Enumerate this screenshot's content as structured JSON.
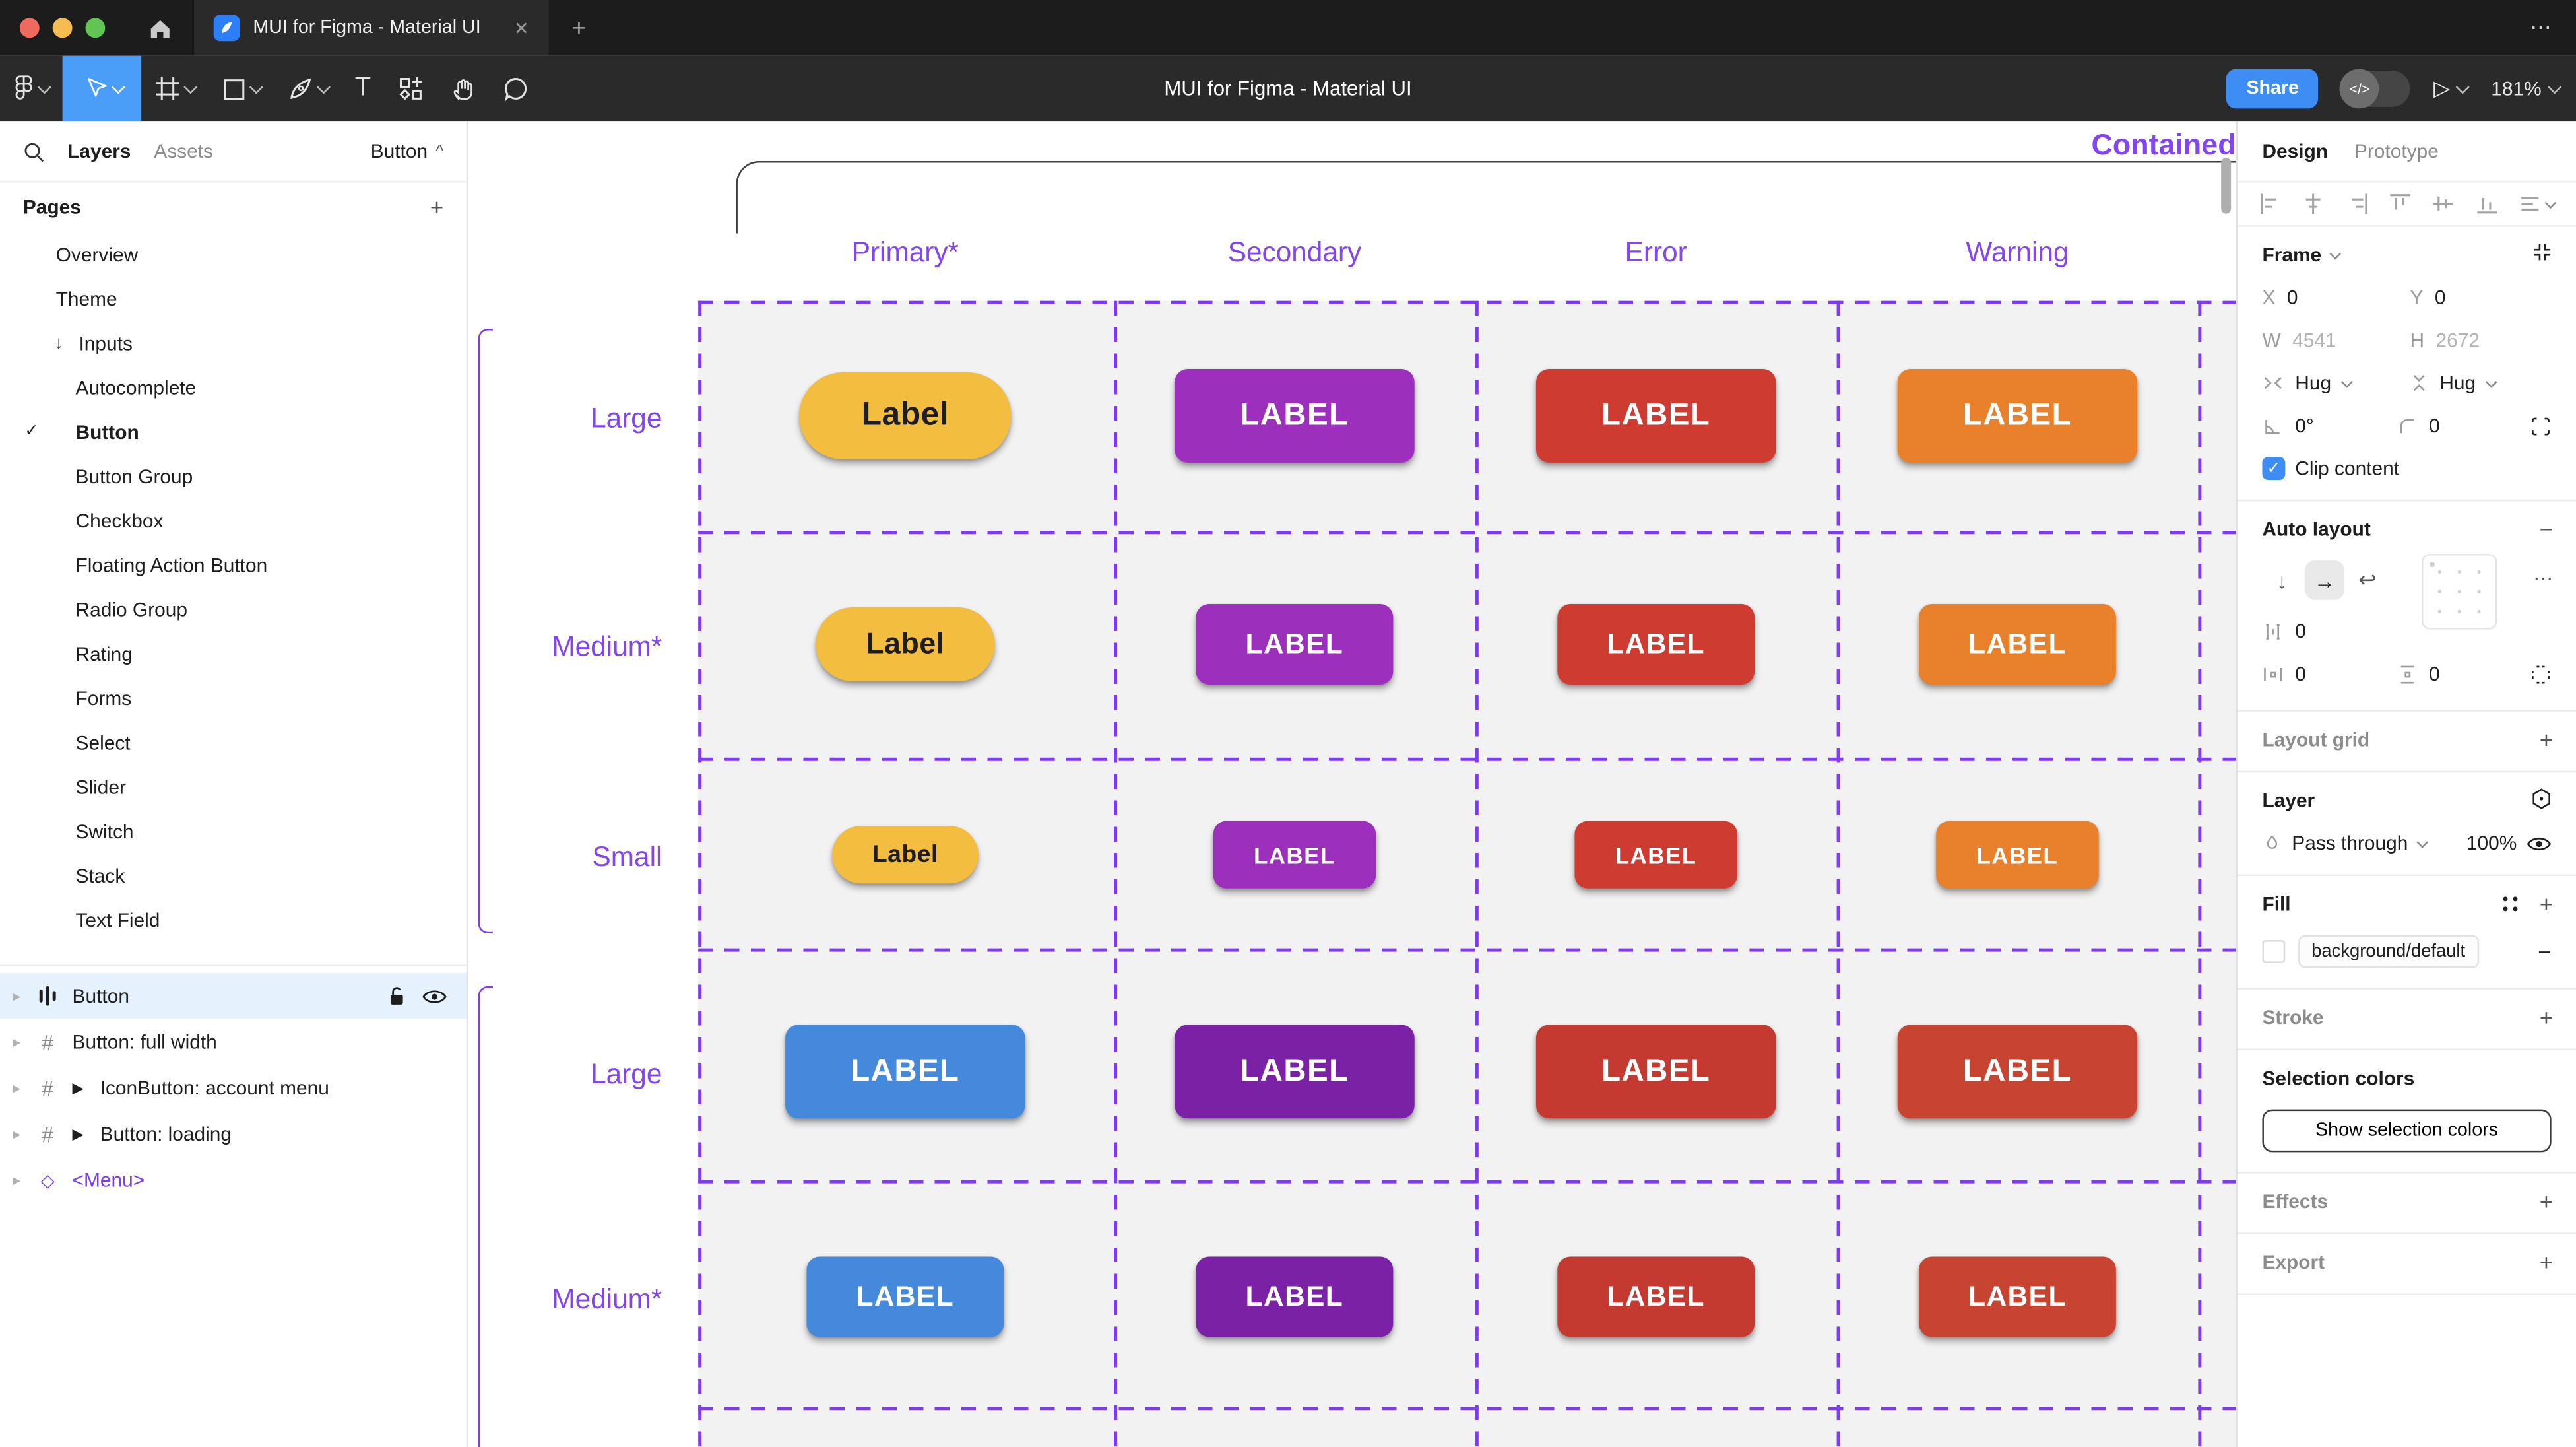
{
  "window": {
    "tab_title": "MUI for Figma - Material UI",
    "doc_title": "MUI for Figma - Material UI",
    "close_glyph": "✕",
    "new_tab_glyph": "+",
    "more_glyph": "⋯",
    "traffic_colors": {
      "red": "#ee6a5f",
      "yellow": "#f5bd4f",
      "green": "#61c554"
    }
  },
  "toolbar_right": {
    "share_label": "Share",
    "dev_toggle_glyph": "</>",
    "play_glyph": "▷",
    "zoom_level": "181%"
  },
  "left_panel": {
    "tabs": {
      "layers": "Layers",
      "assets": "Assets"
    },
    "page_selector": "Button",
    "page_selector_caret": "^",
    "pages_header": "Pages",
    "add_page_glyph": "+",
    "check_glyph": "✓",
    "arrow_down_glyph": "↓",
    "caret_glyph": "▸",
    "play_glyph": "▶",
    "hash_glyph": "#",
    "diamond_glyph": "◇",
    "pages": [
      {
        "label": "Overview",
        "level": 0
      },
      {
        "label": "Theme",
        "level": 0
      },
      {
        "label": "Inputs",
        "level": 0,
        "arrow": true
      },
      {
        "label": "Autocomplete",
        "level": 1
      },
      {
        "label": "Button",
        "level": 1,
        "current": true
      },
      {
        "label": "Button Group",
        "level": 1
      },
      {
        "label": "Checkbox",
        "level": 1
      },
      {
        "label": "Floating Action Button",
        "level": 1
      },
      {
        "label": "Radio Group",
        "level": 1
      },
      {
        "label": "Rating",
        "level": 1
      },
      {
        "label": "Forms",
        "level": 1
      },
      {
        "label": "Select",
        "level": 1
      },
      {
        "label": "Slider",
        "level": 1
      },
      {
        "label": "Switch",
        "level": 1
      },
      {
        "label": "Stack",
        "level": 1
      },
      {
        "label": "Text Field",
        "level": 1
      }
    ],
    "layers": [
      {
        "label": "Button",
        "icon": "autolayout",
        "selected": true
      },
      {
        "label": "Button: full width",
        "icon": "frame"
      },
      {
        "label": "IconButton: account menu",
        "icon": "frame",
        "play": true
      },
      {
        "label": "Button: loading",
        "icon": "frame",
        "play": true
      },
      {
        "label": "<Menu>",
        "icon": "instance",
        "purple": true
      }
    ]
  },
  "canvas": {
    "section_title": "Contained",
    "columns": [
      "Primary*",
      "Secondary",
      "Error",
      "Warning"
    ],
    "rows": [
      {
        "label": "Large",
        "size": "lg"
      },
      {
        "label": "Medium*",
        "size": "md"
      },
      {
        "label": "Small",
        "size": "sm"
      },
      {
        "label": "Large",
        "size": "lg"
      },
      {
        "label": "Medium*",
        "size": "md"
      }
    ],
    "buttons": [
      [
        {
          "text": "Label",
          "bg": "#f3bd40",
          "fg": "#1e1e1e",
          "shape": "pill"
        },
        {
          "text": "LABEL",
          "bg": "#9c30bc",
          "fg": "#ffffff",
          "shape": "rounded"
        },
        {
          "text": "LABEL",
          "bg": "#ce3b31",
          "fg": "#ffffff",
          "shape": "rounded"
        },
        {
          "text": "LABEL",
          "bg": "#e8802c",
          "fg": "#ffffff",
          "shape": "rounded"
        }
      ],
      [
        {
          "text": "Label",
          "bg": "#f3bd40",
          "fg": "#1e1e1e",
          "shape": "pill"
        },
        {
          "text": "LABEL",
          "bg": "#9c30bc",
          "fg": "#ffffff",
          "shape": "rounded"
        },
        {
          "text": "LABEL",
          "bg": "#ce3b31",
          "fg": "#ffffff",
          "shape": "rounded"
        },
        {
          "text": "LABEL",
          "bg": "#e8802c",
          "fg": "#ffffff",
          "shape": "rounded"
        }
      ],
      [
        {
          "text": "Label",
          "bg": "#f3bd40",
          "fg": "#1e1e1e",
          "shape": "pill"
        },
        {
          "text": "LABEL",
          "bg": "#9c30bc",
          "fg": "#ffffff",
          "shape": "rounded"
        },
        {
          "text": "LABEL",
          "bg": "#ce3b31",
          "fg": "#ffffff",
          "shape": "rounded"
        },
        {
          "text": "LABEL",
          "bg": "#e8802c",
          "fg": "#ffffff",
          "shape": "rounded"
        }
      ],
      [
        {
          "text": "LABEL",
          "bg": "#4489db",
          "fg": "#ffffff",
          "shape": "rounded"
        },
        {
          "text": "LABEL",
          "bg": "#7b21a6",
          "fg": "#ffffff",
          "shape": "rounded"
        },
        {
          "text": "LABEL",
          "bg": "#c43a31",
          "fg": "#ffffff",
          "shape": "rounded"
        },
        {
          "text": "LABEL",
          "bg": "#c74430",
          "fg": "#ffffff",
          "shape": "rounded"
        }
      ],
      [
        {
          "text": "LABEL",
          "bg": "#4489db",
          "fg": "#ffffff",
          "shape": "rounded"
        },
        {
          "text": "LABEL",
          "bg": "#7b21a6",
          "fg": "#ffffff",
          "shape": "rounded"
        },
        {
          "text": "LABEL",
          "bg": "#c43a31",
          "fg": "#ffffff",
          "shape": "rounded"
        },
        {
          "text": "LABEL",
          "bg": "#c74430",
          "fg": "#ffffff",
          "shape": "rounded"
        }
      ]
    ],
    "accent_purple": "#8345f1"
  },
  "right_panel": {
    "tabs": {
      "design": "Design",
      "prototype": "Prototype"
    },
    "frame": {
      "title": "Frame",
      "x_label": "X",
      "x_value": "0",
      "y_label": "Y",
      "y_value": "0",
      "w_label": "W",
      "w_value": "4541",
      "h_label": "H",
      "h_value": "2672",
      "hug_h": "Hug",
      "hug_v": "Hug",
      "rotation": "0°",
      "corner_radius": "0",
      "clip_label": "Clip content",
      "check_glyph": "✓"
    },
    "auto_layout": {
      "title": "Auto layout",
      "remove_glyph": "−",
      "dir_down_glyph": "↓",
      "dir_right_glyph": "→",
      "wrap_glyph": "↩",
      "more_glyph": "⋯",
      "gap_value": "0",
      "pad_h_value": "0",
      "pad_v_value": "0"
    },
    "layout_grid": {
      "title": "Layout grid",
      "add_glyph": "+"
    },
    "layer": {
      "title": "Layer",
      "blend_mode": "Pass through",
      "opacity": "100%"
    },
    "fill": {
      "title": "Fill",
      "token": "background/default",
      "add_glyph": "+",
      "remove_glyph": "−"
    },
    "stroke": {
      "title": "Stroke",
      "add_glyph": "+"
    },
    "selection_colors": {
      "title": "Selection colors",
      "button_label": "Show selection colors"
    },
    "effects": {
      "title": "Effects",
      "add_glyph": "+"
    },
    "export": {
      "title": "Export",
      "add_glyph": "+"
    }
  }
}
